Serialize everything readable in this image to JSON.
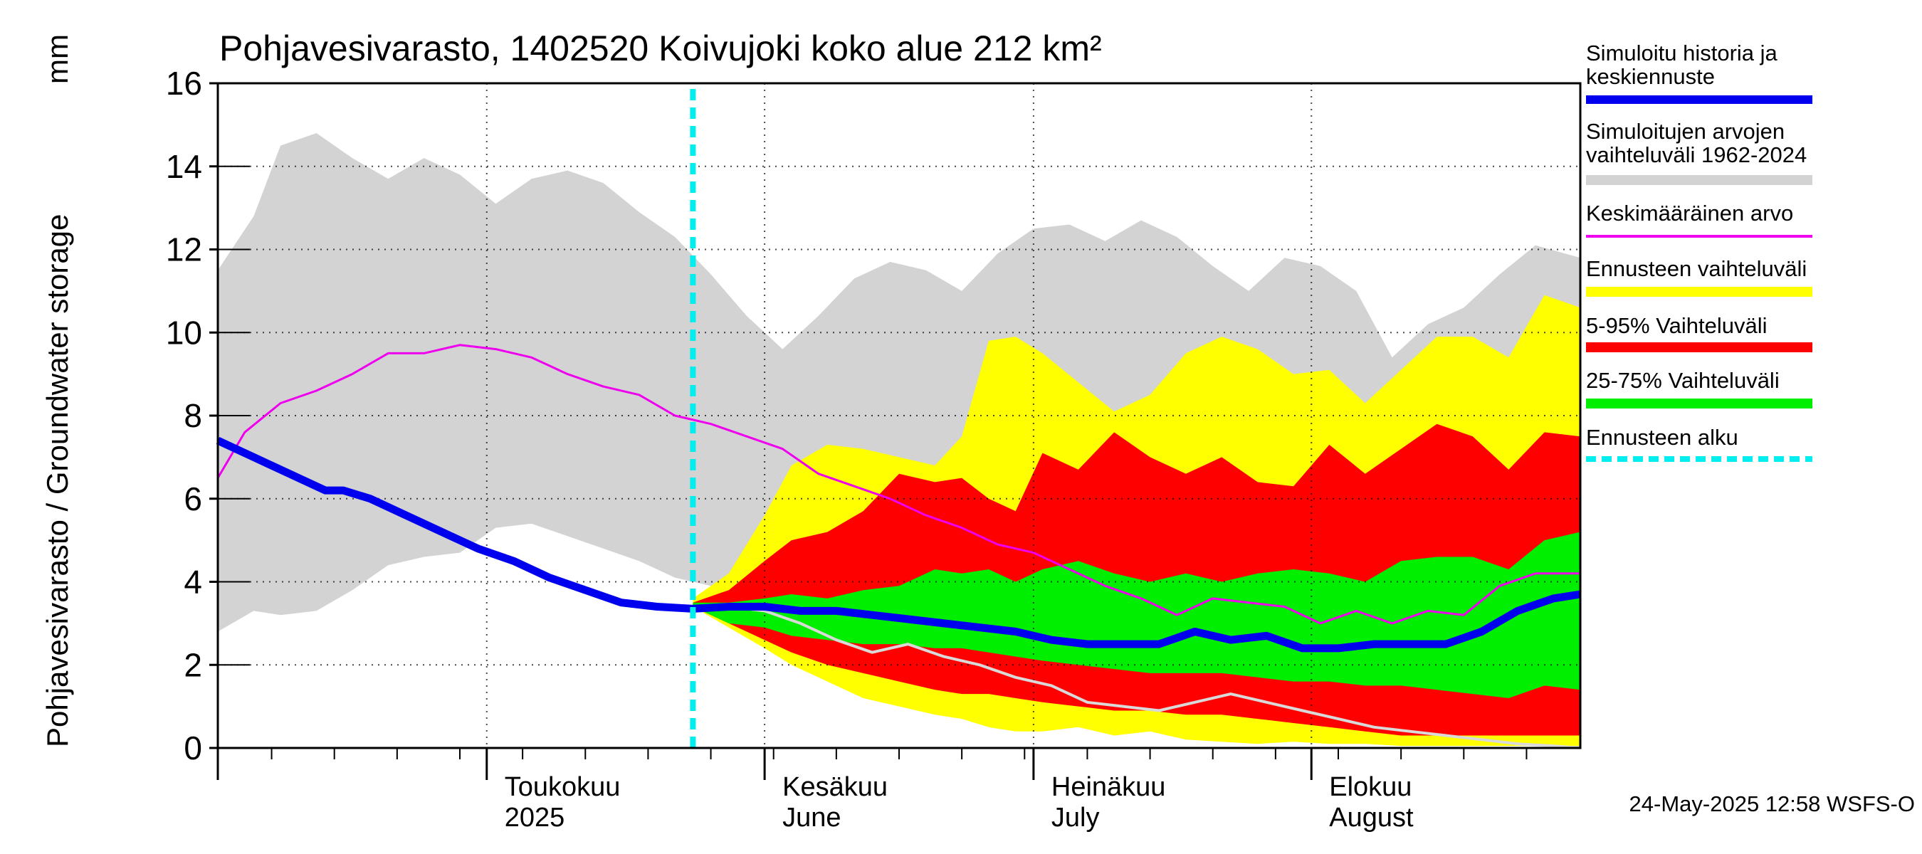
{
  "chart_data": {
    "type": "area",
    "title": "Pohjavesivarasto, 1402520 Koivujoki koko alue 212 km²",
    "ylabel_fi": "Pohjavesivarasto / Groundwater storage",
    "ylabel_unit": "mm",
    "xlim": [
      "2025-04-01",
      "2025-08-31"
    ],
    "ylim": [
      0,
      16
    ],
    "y_ticks": [
      0,
      2,
      4,
      6,
      8,
      10,
      12,
      14,
      16
    ],
    "month_labels": [
      {
        "date": "2025-05-01",
        "line1": "Toukokuu",
        "line2": "2025"
      },
      {
        "date": "2025-06-01",
        "line1": "Kesäkuu",
        "line2": "June"
      },
      {
        "date": "2025-07-01",
        "line1": "Heinäkuu",
        "line2": "July"
      },
      {
        "date": "2025-08-01",
        "line1": "Elokuu",
        "line2": "August"
      }
    ],
    "forecast_start": "2025-05-24",
    "colors": {
      "history": "#0000ee",
      "range_sim": "#d3d3d3",
      "mean": "#ee00ee",
      "forecast_range": "#ffff00",
      "p5_95": "#ff0000",
      "p25_75": "#00ee00",
      "forecast_start": "#00eeee",
      "median_line": "#d9d9d9"
    },
    "legend": [
      {
        "key": "history",
        "text1": "Simuloitu historia ja",
        "text2": "keskiennuste",
        "style": "thick"
      },
      {
        "key": "range_sim",
        "text1": "Simuloitujen arvojen",
        "text2": "vaihteluväli 1962-2024",
        "style": "band"
      },
      {
        "key": "mean",
        "text1": "Keskimääräinen arvo",
        "text2": "",
        "style": "thin"
      },
      {
        "key": "forecast_range",
        "text1": "Ennusteen vaihteluväli",
        "text2": "",
        "style": "band"
      },
      {
        "key": "p5_95",
        "text1": "5-95% Vaihteluväli",
        "text2": "",
        "style": "band"
      },
      {
        "key": "p25_75",
        "text1": "25-75% Vaihteluväli",
        "text2": "",
        "style": "band"
      },
      {
        "key": "forecast_start",
        "text1": "Ennusteen alku",
        "text2": "",
        "style": "dashed"
      }
    ],
    "series": {
      "range_sim": {
        "x": [
          "2025-04-01",
          "2025-04-05",
          "2025-04-08",
          "2025-04-12",
          "2025-04-16",
          "2025-04-20",
          "2025-04-24",
          "2025-04-28",
          "2025-05-02",
          "2025-05-06",
          "2025-05-10",
          "2025-05-14",
          "2025-05-18",
          "2025-05-22",
          "2025-05-26",
          "2025-05-30",
          "2025-06-03",
          "2025-06-07",
          "2025-06-11",
          "2025-06-15",
          "2025-06-19",
          "2025-06-23",
          "2025-06-27",
          "2025-07-01",
          "2025-07-05",
          "2025-07-09",
          "2025-07-13",
          "2025-07-17",
          "2025-07-21",
          "2025-07-25",
          "2025-07-29",
          "2025-08-02",
          "2025-08-06",
          "2025-08-10",
          "2025-08-14",
          "2025-08-18",
          "2025-08-22",
          "2025-08-26",
          "2025-08-31"
        ],
        "high": [
          11.5,
          12.8,
          14.5,
          14.8,
          14.2,
          13.7,
          14.2,
          13.8,
          13.1,
          13.7,
          13.9,
          13.6,
          12.9,
          12.3,
          11.4,
          10.4,
          9.6,
          10.4,
          11.3,
          11.7,
          11.5,
          11.0,
          11.9,
          12.5,
          12.6,
          12.2,
          12.7,
          12.3,
          11.6,
          11.0,
          11.8,
          11.6,
          11.0,
          9.4,
          10.2,
          10.6,
          11.4,
          12.1,
          11.8
        ],
        "low": [
          2.8,
          3.3,
          3.2,
          3.3,
          3.8,
          4.4,
          4.6,
          4.7,
          5.3,
          5.4,
          5.1,
          4.8,
          4.5,
          4.1,
          3.9,
          3.6,
          3.5,
          3.3,
          3.1,
          3.0,
          2.8,
          2.5,
          2.2,
          1.9,
          1.7,
          1.5,
          1.5,
          1.4,
          1.3,
          1.1,
          0.9,
          0.7,
          0.5,
          0.3,
          0.2,
          0.2,
          0.1,
          0.05,
          0.0
        ]
      },
      "forecast_range": {
        "x": [
          "2025-05-24",
          "2025-05-28",
          "2025-06-01",
          "2025-06-04",
          "2025-06-08",
          "2025-06-12",
          "2025-06-16",
          "2025-06-20",
          "2025-06-23",
          "2025-06-26",
          "2025-06-29",
          "2025-07-02",
          "2025-07-06",
          "2025-07-10",
          "2025-07-14",
          "2025-07-18",
          "2025-07-22",
          "2025-07-26",
          "2025-07-30",
          "2025-08-03",
          "2025-08-07",
          "2025-08-11",
          "2025-08-15",
          "2025-08-19",
          "2025-08-23",
          "2025-08-27",
          "2025-08-31"
        ],
        "high": [
          3.6,
          4.2,
          5.6,
          6.8,
          7.3,
          7.2,
          7.0,
          6.8,
          7.5,
          9.8,
          9.9,
          9.5,
          8.8,
          8.1,
          8.5,
          9.5,
          9.9,
          9.6,
          9.0,
          9.1,
          8.3,
          9.1,
          9.9,
          9.9,
          9.4,
          10.9,
          10.6
        ],
        "low": [
          3.4,
          2.9,
          2.4,
          2.0,
          1.6,
          1.2,
          1.0,
          0.8,
          0.7,
          0.5,
          0.4,
          0.4,
          0.5,
          0.3,
          0.4,
          0.2,
          0.15,
          0.1,
          0.15,
          0.1,
          0.1,
          0.05,
          0.05,
          0.05,
          0.05,
          0.05,
          0.05
        ]
      },
      "p5_95": {
        "x": [
          "2025-05-24",
          "2025-05-28",
          "2025-06-01",
          "2025-06-04",
          "2025-06-08",
          "2025-06-12",
          "2025-06-16",
          "2025-06-20",
          "2025-06-23",
          "2025-06-26",
          "2025-06-29",
          "2025-07-02",
          "2025-07-06",
          "2025-07-10",
          "2025-07-14",
          "2025-07-18",
          "2025-07-22",
          "2025-07-26",
          "2025-07-30",
          "2025-08-03",
          "2025-08-07",
          "2025-08-11",
          "2025-08-15",
          "2025-08-19",
          "2025-08-23",
          "2025-08-27",
          "2025-08-31"
        ],
        "high": [
          3.5,
          3.8,
          4.5,
          5.0,
          5.2,
          5.7,
          6.6,
          6.4,
          6.5,
          6.0,
          5.7,
          7.1,
          6.7,
          7.6,
          7.0,
          6.6,
          7.0,
          6.4,
          6.3,
          7.3,
          6.6,
          7.2,
          7.8,
          7.5,
          6.7,
          7.6,
          7.5
        ],
        "low": [
          3.4,
          3.0,
          2.6,
          2.3,
          2.0,
          1.8,
          1.6,
          1.4,
          1.3,
          1.3,
          1.2,
          1.1,
          1.0,
          0.9,
          0.9,
          0.8,
          0.8,
          0.7,
          0.6,
          0.5,
          0.4,
          0.3,
          0.3,
          0.3,
          0.3,
          0.3,
          0.3
        ]
      },
      "p25_75": {
        "x": [
          "2025-05-24",
          "2025-05-28",
          "2025-06-01",
          "2025-06-04",
          "2025-06-08",
          "2025-06-12",
          "2025-06-16",
          "2025-06-20",
          "2025-06-23",
          "2025-06-26",
          "2025-06-29",
          "2025-07-02",
          "2025-07-06",
          "2025-07-10",
          "2025-07-14",
          "2025-07-18",
          "2025-07-22",
          "2025-07-26",
          "2025-07-30",
          "2025-08-03",
          "2025-08-07",
          "2025-08-11",
          "2025-08-15",
          "2025-08-19",
          "2025-08-23",
          "2025-08-27",
          "2025-08-31"
        ],
        "high": [
          3.5,
          3.5,
          3.6,
          3.7,
          3.6,
          3.8,
          3.9,
          4.3,
          4.2,
          4.3,
          4.0,
          4.3,
          4.5,
          4.2,
          4.0,
          4.2,
          4.0,
          4.2,
          4.3,
          4.2,
          4.0,
          4.5,
          4.6,
          4.6,
          4.3,
          5.0,
          5.2
        ],
        "low": [
          3.4,
          3.0,
          2.9,
          2.7,
          2.6,
          2.5,
          2.5,
          2.4,
          2.4,
          2.3,
          2.2,
          2.1,
          2.0,
          1.9,
          1.8,
          1.8,
          1.8,
          1.7,
          1.6,
          1.6,
          1.5,
          1.5,
          1.4,
          1.3,
          1.2,
          1.5,
          1.4
        ]
      },
      "history": {
        "x": [
          "2025-04-01",
          "2025-04-05",
          "2025-04-09",
          "2025-04-13",
          "2025-04-15",
          "2025-04-18",
          "2025-04-22",
          "2025-04-26",
          "2025-04-30",
          "2025-05-04",
          "2025-05-08",
          "2025-05-12",
          "2025-05-16",
          "2025-05-20",
          "2025-05-24",
          "2025-05-28",
          "2025-06-01",
          "2025-06-05",
          "2025-06-09",
          "2025-06-13",
          "2025-06-17",
          "2025-06-21",
          "2025-06-25",
          "2025-06-29",
          "2025-07-03",
          "2025-07-07",
          "2025-07-11",
          "2025-07-15",
          "2025-07-19",
          "2025-07-23",
          "2025-07-27",
          "2025-07-31",
          "2025-08-04",
          "2025-08-08",
          "2025-08-12",
          "2025-08-16",
          "2025-08-20",
          "2025-08-24",
          "2025-08-28",
          "2025-08-31"
        ],
        "values": [
          7.4,
          7.0,
          6.6,
          6.2,
          6.2,
          6.0,
          5.6,
          5.2,
          4.8,
          4.5,
          4.1,
          3.8,
          3.5,
          3.4,
          3.35,
          3.4,
          3.4,
          3.3,
          3.3,
          3.2,
          3.1,
          3.0,
          2.9,
          2.8,
          2.6,
          2.5,
          2.5,
          2.5,
          2.8,
          2.6,
          2.7,
          2.4,
          2.4,
          2.5,
          2.5,
          2.5,
          2.8,
          3.3,
          3.6,
          3.7
        ]
      },
      "mean": {
        "x": [
          "2025-04-01",
          "2025-04-04",
          "2025-04-08",
          "2025-04-12",
          "2025-04-16",
          "2025-04-20",
          "2025-04-24",
          "2025-04-28",
          "2025-05-02",
          "2025-05-06",
          "2025-05-10",
          "2025-05-14",
          "2025-05-18",
          "2025-05-22",
          "2025-05-26",
          "2025-05-30",
          "2025-06-03",
          "2025-06-07",
          "2025-06-11",
          "2025-06-15",
          "2025-06-19",
          "2025-06-23",
          "2025-06-27",
          "2025-07-01",
          "2025-07-05",
          "2025-07-09",
          "2025-07-13",
          "2025-07-17",
          "2025-07-21",
          "2025-07-25",
          "2025-07-29",
          "2025-08-02",
          "2025-08-06",
          "2025-08-10",
          "2025-08-14",
          "2025-08-18",
          "2025-08-22",
          "2025-08-26",
          "2025-08-31"
        ],
        "values": [
          6.5,
          7.6,
          8.3,
          8.6,
          9.0,
          9.5,
          9.5,
          9.7,
          9.6,
          9.4,
          9.0,
          8.7,
          8.5,
          8.0,
          7.8,
          7.5,
          7.2,
          6.6,
          6.3,
          6.0,
          5.6,
          5.3,
          4.9,
          4.7,
          4.3,
          3.9,
          3.6,
          3.2,
          3.6,
          3.5,
          3.4,
          3.0,
          3.3,
          3.0,
          3.3,
          3.2,
          3.9,
          4.2,
          4.2
        ]
      },
      "median_line": {
        "x": [
          "2025-05-24",
          "2025-05-28",
          "2025-06-01",
          "2025-06-05",
          "2025-06-09",
          "2025-06-13",
          "2025-06-17",
          "2025-06-21",
          "2025-06-25",
          "2025-06-29",
          "2025-07-03",
          "2025-07-07",
          "2025-07-11",
          "2025-07-15",
          "2025-07-19",
          "2025-07-23",
          "2025-07-27",
          "2025-07-31",
          "2025-08-04",
          "2025-08-08",
          "2025-08-12",
          "2025-08-16",
          "2025-08-20",
          "2025-08-24",
          "2025-08-28",
          "2025-08-31"
        ],
        "values": [
          3.4,
          3.4,
          3.3,
          3.0,
          2.6,
          2.3,
          2.5,
          2.2,
          2.0,
          1.7,
          1.5,
          1.1,
          1.0,
          0.9,
          1.1,
          1.3,
          1.1,
          0.9,
          0.7,
          0.5,
          0.4,
          0.3,
          0.2,
          0.1,
          0.05,
          0.0
        ]
      }
    }
  },
  "footer": {
    "timestamp": "24-May-2025 12:58 WSFS-O"
  }
}
